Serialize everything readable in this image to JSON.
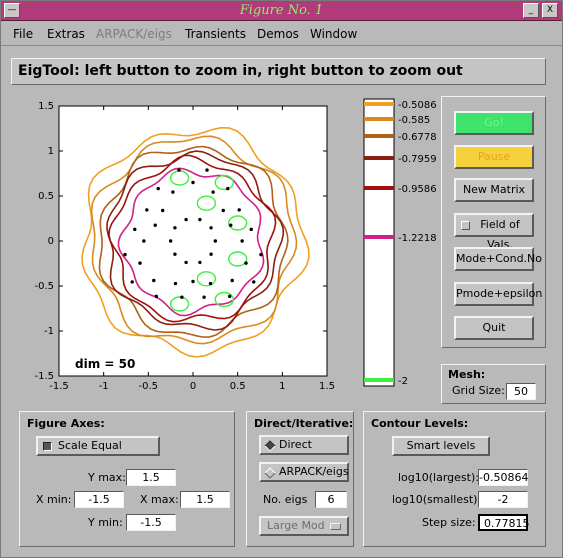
{
  "window": {
    "title": "Figure No. 1"
  },
  "window_controls": {
    "minimize": "_",
    "close": "X"
  },
  "menu": [
    "File",
    "Extras",
    "ARPACK/eigs",
    "Transients",
    "Demos",
    "Window"
  ],
  "header": "EigTool: left button to zoom in, right button to zoom out",
  "plot": {
    "annotation": "dim = 50",
    "x_ticks": [
      "-1.5",
      "-1",
      "-0.5",
      "0",
      "0.5",
      "1",
      "1.5"
    ],
    "y_ticks": [
      "1.5",
      "1",
      "0.5",
      "0",
      "-0.5",
      "-1",
      "-1.5"
    ]
  },
  "colorbar": {
    "levels": [
      {
        "label": "-0.5086",
        "color": "#f0a020"
      },
      {
        "label": "-0.585",
        "color": "#d98a20"
      },
      {
        "label": "-0.6778",
        "color": "#b06018"
      },
      {
        "label": "-0.7959",
        "color": "#8a2010"
      },
      {
        "label": "-0.9586",
        "color": "#a01010"
      },
      {
        "label": "-1.2218",
        "color": "#d0208a"
      },
      {
        "label": "-2",
        "color": "#3ef03e"
      }
    ]
  },
  "buttons": {
    "go": "Go!",
    "pause": "Pause",
    "new_matrix": "New Matrix",
    "field_of_vals": "Field of Vals.",
    "mode_cond": "Mode+Cond.No",
    "pmode_eps": "Pmode+epsilon",
    "quit": "Quit"
  },
  "mesh": {
    "title": "Mesh:",
    "grid_size_label": "Grid Size:",
    "grid_size": "50"
  },
  "figure_axes": {
    "title": "Figure Axes:",
    "scale_equal": "Scale Equal",
    "ymax_label": "Y max:",
    "ymax": "1.5",
    "xmin_label": "X min:",
    "xmin": "-1.5",
    "xmax_label": "X max:",
    "xmax": "1.5",
    "ymin_label": "Y min:",
    "ymin": "-1.5"
  },
  "direct_iterative": {
    "title": "Direct/Iterative:",
    "direct": "Direct",
    "arpack": "ARPACK/eigs",
    "no_eigs_label": "No. eigs",
    "no_eigs": "6",
    "which": "Large Mod"
  },
  "contour_levels": {
    "title": "Contour Levels:",
    "smart_levels": "Smart levels",
    "log_largest_label": "log10(largest):",
    "log_largest": "-0.50864",
    "log_smallest_label": "log10(smallest):",
    "log_smallest": "-2",
    "step_label": "Step size:",
    "step": "0.77815"
  }
}
